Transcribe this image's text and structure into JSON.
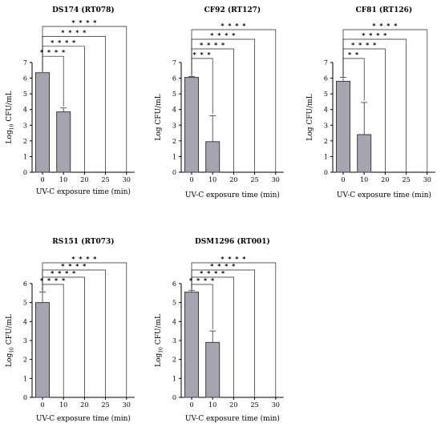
{
  "chart_data": [
    {
      "type": "bar",
      "title": "DS174 (RT078)",
      "ylabel_main": "Log",
      "ylabel_sub": "10",
      "ylabel_rest": " CFU/mL",
      "xlabel": "UV-C exposure time (min)",
      "categories": [
        "0",
        "10",
        "20",
        "25",
        "30"
      ],
      "values": [
        6.35,
        3.85,
        0,
        0,
        0
      ],
      "errors": [
        0,
        0.25,
        0,
        0,
        0
      ],
      "ylim": [
        0,
        7
      ],
      "yticks": [
        "0",
        "1",
        "2",
        "3",
        "4",
        "5",
        "6",
        "7"
      ],
      "significance": [
        {
          "from": "0",
          "to": "10",
          "stars": "****"
        },
        {
          "from": "0",
          "to": "20",
          "stars": "****"
        },
        {
          "from": "0",
          "to": "25",
          "stars": "****"
        },
        {
          "from": "0",
          "to": "30",
          "stars": "****"
        }
      ]
    },
    {
      "type": "bar",
      "title": "CF92 (RT127)",
      "ylabel_main": "Log CFU/mL",
      "ylabel_sub": "",
      "ylabel_rest": "",
      "xlabel": "UV-C exposure time (min)",
      "categories": [
        "0",
        "10",
        "20",
        "25",
        "30"
      ],
      "values": [
        6.05,
        1.95,
        0,
        0,
        0
      ],
      "errors": [
        0.05,
        1.65,
        0,
        0,
        0
      ],
      "ylim": [
        0,
        7
      ],
      "yticks": [
        "0",
        "1",
        "2",
        "3",
        "4",
        "5",
        "6",
        "7"
      ],
      "significance": [
        {
          "from": "0",
          "to": "10",
          "stars": "***"
        },
        {
          "from": "0",
          "to": "20",
          "stars": "****"
        },
        {
          "from": "0",
          "to": "25",
          "stars": "****"
        },
        {
          "from": "0",
          "to": "30",
          "stars": "****"
        }
      ]
    },
    {
      "type": "bar",
      "title": "CF81 (RT126)",
      "ylabel_main": "Log CFU/mL",
      "ylabel_sub": "",
      "ylabel_rest": "",
      "xlabel": "UV-C exposure time (min)",
      "categories": [
        "0",
        "10",
        "20",
        "25",
        "30"
      ],
      "values": [
        5.8,
        2.4,
        0,
        0,
        0
      ],
      "errors": [
        0.25,
        2.05,
        0,
        0,
        0
      ],
      "ylim": [
        0,
        7
      ],
      "yticks": [
        "0",
        "1",
        "2",
        "3",
        "4",
        "5",
        "6",
        "7"
      ],
      "significance": [
        {
          "from": "0",
          "to": "10",
          "stars": "**"
        },
        {
          "from": "0",
          "to": "20",
          "stars": "****"
        },
        {
          "from": "0",
          "to": "25",
          "stars": "****"
        },
        {
          "from": "0",
          "to": "30",
          "stars": "****"
        }
      ]
    },
    {
      "type": "bar",
      "title": "RS151 (RT073)",
      "ylabel_main": "Log",
      "ylabel_sub": "10",
      "ylabel_rest": " CFU/mL",
      "xlabel": "UV-C exposure time (min)",
      "categories": [
        "0",
        "10",
        "20",
        "25",
        "30"
      ],
      "values": [
        5.0,
        0,
        0,
        0,
        0
      ],
      "errors": [
        0.55,
        0,
        0,
        0,
        0
      ],
      "ylim": [
        0,
        6
      ],
      "yticks": [
        "0",
        "1",
        "2",
        "3",
        "4",
        "5",
        "6"
      ],
      "significance": [
        {
          "from": "0",
          "to": "10",
          "stars": "****"
        },
        {
          "from": "0",
          "to": "20",
          "stars": "****"
        },
        {
          "from": "0",
          "to": "25",
          "stars": "****"
        },
        {
          "from": "0",
          "to": "30",
          "stars": "****"
        }
      ]
    },
    {
      "type": "bar",
      "title": "DSM1296 (RT001)",
      "ylabel_main": "Log",
      "ylabel_sub": "10",
      "ylabel_rest": " CFU/mL",
      "xlabel": "UV-C exposure time (min)",
      "categories": [
        "0",
        "10",
        "20",
        "25",
        "30"
      ],
      "values": [
        5.55,
        2.9,
        0,
        0,
        0
      ],
      "errors": [
        0.1,
        0.6,
        0,
        0,
        0
      ],
      "ylim": [
        0,
        6
      ],
      "yticks": [
        "0",
        "1",
        "2",
        "3",
        "4",
        "5",
        "6"
      ],
      "significance": [
        {
          "from": "0",
          "to": "10",
          "stars": "****"
        },
        {
          "from": "0",
          "to": "20",
          "stars": "****"
        },
        {
          "from": "0",
          "to": "25",
          "stars": "****"
        },
        {
          "from": "0",
          "to": "30",
          "stars": "****"
        }
      ]
    }
  ]
}
